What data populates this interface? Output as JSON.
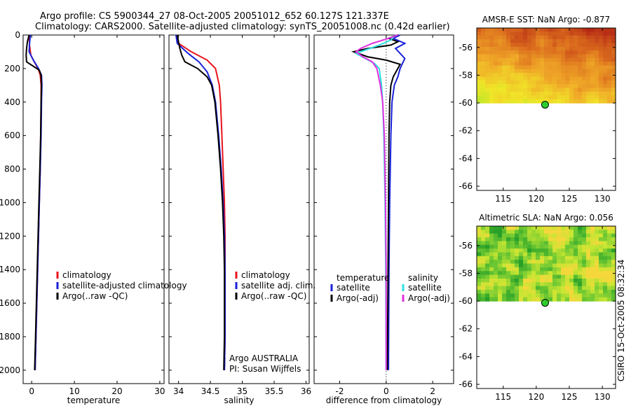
{
  "title": {
    "line1": "Argo profile: CS 5900344_27 08-Oct-2005 20051012_652 60.127S 121.337E",
    "line2": "Climatology: CARS2000. Satellite-adjusted climatology: synTS_20051008.nc (0.42d earlier)"
  },
  "footer": {
    "credit": "CSIRO 15-Oct-2005 08:32:34"
  },
  "colors": {
    "climatology": "#e8141c",
    "satellite": "#1820d8",
    "argo": "#000000",
    "salinity_satellite": "#2ce0e0",
    "salinity_argo": "#e030e0"
  },
  "chart_data": [
    {
      "type": "line",
      "name": "temperature-profile",
      "xlabel": "temperature",
      "xlim": [
        -2,
        31
      ],
      "xticks": [
        0,
        10,
        20,
        30
      ],
      "ylim": [
        2080,
        0
      ],
      "yticks": [
        0,
        200,
        400,
        600,
        800,
        1000,
        1200,
        1400,
        1600,
        1800,
        2000
      ],
      "legend": [
        "climatology",
        "satellite-adjusted climatology",
        "Argo(..raw -QC)"
      ],
      "series": [
        {
          "name": "climatology",
          "color": "#e8141c",
          "points": [
            [
              -0.6,
              0
            ],
            [
              -0.5,
              60
            ],
            [
              -0.2,
              120
            ],
            [
              0.6,
              160
            ],
            [
              1.5,
              200
            ],
            [
              2.0,
              240
            ],
            [
              2.2,
              300
            ],
            [
              2.2,
              400
            ],
            [
              2.1,
              600
            ],
            [
              2.0,
              800
            ],
            [
              1.8,
              1000
            ],
            [
              1.6,
              1200
            ],
            [
              1.4,
              1400
            ],
            [
              1.2,
              1600
            ],
            [
              1.0,
              1800
            ],
            [
              0.8,
              2000
            ]
          ]
        },
        {
          "name": "satellite-adjusted climatology",
          "color": "#1820d8",
          "points": [
            [
              -0.3,
              0
            ],
            [
              -0.5,
              50
            ],
            [
              -0.6,
              100
            ],
            [
              0.4,
              150
            ],
            [
              1.6,
              200
            ],
            [
              2.3,
              240
            ],
            [
              2.4,
              300
            ],
            [
              2.3,
              400
            ],
            [
              2.2,
              600
            ],
            [
              2.0,
              800
            ],
            [
              1.8,
              1000
            ],
            [
              1.6,
              1200
            ],
            [
              1.4,
              1400
            ],
            [
              1.2,
              1600
            ],
            [
              1.0,
              1800
            ],
            [
              0.8,
              2000
            ]
          ]
        },
        {
          "name": "Argo(..raw -QC)",
          "color": "#000000",
          "points": [
            [
              -0.6,
              0
            ],
            [
              -1.0,
              40
            ],
            [
              -1.2,
              80
            ],
            [
              -1.3,
              120
            ],
            [
              -1.2,
              160
            ],
            [
              0.6,
              190
            ],
            [
              1.8,
              210
            ],
            [
              2.2,
              240
            ],
            [
              2.3,
              300
            ],
            [
              2.2,
              400
            ],
            [
              2.1,
              600
            ],
            [
              1.9,
              800
            ],
            [
              1.7,
              1000
            ],
            [
              1.5,
              1200
            ],
            [
              1.3,
              1400
            ],
            [
              1.1,
              1600
            ],
            [
              0.9,
              1800
            ],
            [
              0.7,
              2000
            ]
          ]
        }
      ]
    },
    {
      "type": "line",
      "name": "salinity-profile",
      "xlabel": "salinity",
      "xlim": [
        33.85,
        36.05
      ],
      "xticks": [
        34,
        34.5,
        35,
        35.5,
        36
      ],
      "ylim": [
        2080,
        0
      ],
      "legend": [
        "climatology",
        "satellite adj. clim.",
        "Argo(..raw -QC)"
      ],
      "annotation": [
        "Argo AUSTRALIA",
        "PI: Susan Wijffels"
      ],
      "series": [
        {
          "name": "climatology",
          "color": "#e8141c",
          "points": [
            [
              33.97,
              0
            ],
            [
              34.0,
              50
            ],
            [
              34.2,
              100
            ],
            [
              34.45,
              150
            ],
            [
              34.58,
              200
            ],
            [
              34.64,
              300
            ],
            [
              34.66,
              400
            ],
            [
              34.68,
              600
            ],
            [
              34.7,
              800
            ],
            [
              34.72,
              1000
            ],
            [
              34.73,
              1200
            ],
            [
              34.73,
              1400
            ],
            [
              34.73,
              1600
            ],
            [
              34.73,
              1800
            ],
            [
              34.72,
              2000
            ]
          ]
        },
        {
          "name": "satellite adj. clim.",
          "color": "#1820d8",
          "points": [
            [
              33.96,
              0
            ],
            [
              33.98,
              50
            ],
            [
              34.15,
              110
            ],
            [
              34.32,
              160
            ],
            [
              34.45,
              220
            ],
            [
              34.53,
              300
            ],
            [
              34.58,
              400
            ],
            [
              34.63,
              600
            ],
            [
              34.67,
              800
            ],
            [
              34.7,
              1000
            ],
            [
              34.72,
              1200
            ],
            [
              34.73,
              1400
            ],
            [
              34.73,
              1600
            ],
            [
              34.73,
              1800
            ],
            [
              34.72,
              2000
            ]
          ]
        },
        {
          "name": "Argo(..raw -QC)",
          "color": "#000000",
          "points": [
            [
              33.98,
              0
            ],
            [
              34.0,
              40
            ],
            [
              34.02,
              80
            ],
            [
              34.05,
              120
            ],
            [
              34.1,
              160
            ],
            [
              34.3,
              200
            ],
            [
              34.45,
              250
            ],
            [
              34.52,
              300
            ],
            [
              34.57,
              400
            ],
            [
              34.62,
              600
            ],
            [
              34.66,
              800
            ],
            [
              34.69,
              1000
            ],
            [
              34.71,
              1200
            ],
            [
              34.72,
              1400
            ],
            [
              34.72,
              1600
            ],
            [
              34.72,
              1800
            ],
            [
              34.71,
              2000
            ]
          ]
        }
      ]
    },
    {
      "type": "line",
      "name": "difference-profile",
      "xlabel": "difference from climatology",
      "xlim": [
        -3.1,
        2.9
      ],
      "xticks": [
        -2,
        0,
        2
      ],
      "xtick_labels": [
        "-2",
        "0",
        "2"
      ],
      "ylim": [
        2080,
        0
      ],
      "legend_temperature": {
        "heading": "temperature",
        "items": [
          "satellite",
          "Argo(-adj)"
        ]
      },
      "legend_salinity": {
        "heading": "salinity",
        "items": [
          "satellite",
          "Argo(-adj)"
        ]
      },
      "series": [
        {
          "name": "temperature satellite",
          "color": "#1820d8",
          "points": [
            [
              0.6,
              0
            ],
            [
              0.3,
              20
            ],
            [
              0.8,
              50
            ],
            [
              0.4,
              80
            ],
            [
              0.6,
              110
            ],
            [
              0.8,
              140
            ],
            [
              0.7,
              170
            ],
            [
              0.6,
              200
            ],
            [
              0.5,
              250
            ],
            [
              0.35,
              300
            ],
            [
              0.25,
              400
            ],
            [
              0.2,
              600
            ],
            [
              0.15,
              1000
            ],
            [
              0.12,
              1400
            ],
            [
              0.1,
              2000
            ]
          ]
        },
        {
          "name": "temperature Argo(-adj)",
          "color": "#000000",
          "points": [
            [
              0.5,
              0
            ],
            [
              0.1,
              20
            ],
            [
              0.5,
              40
            ],
            [
              0.2,
              60
            ],
            [
              -0.8,
              80
            ],
            [
              -1.4,
              100
            ],
            [
              -0.8,
              130
            ],
            [
              0.0,
              150
            ],
            [
              0.6,
              175
            ],
            [
              0.5,
              200
            ],
            [
              0.3,
              250
            ],
            [
              0.2,
              300
            ],
            [
              0.15,
              400
            ],
            [
              0.12,
              600
            ],
            [
              0.1,
              1000
            ],
            [
              0.08,
              1400
            ],
            [
              0.05,
              2000
            ]
          ]
        },
        {
          "name": "salinity satellite",
          "color": "#2ce0e0",
          "points": [
            [
              0.4,
              0
            ],
            [
              0.2,
              30
            ],
            [
              -0.3,
              60
            ],
            [
              -0.9,
              90
            ],
            [
              -1.3,
              110
            ],
            [
              -0.9,
              140
            ],
            [
              -0.5,
              170
            ],
            [
              -0.3,
              200
            ],
            [
              -0.2,
              300
            ],
            [
              -0.15,
              400
            ],
            [
              -0.1,
              600
            ],
            [
              -0.05,
              1000
            ],
            [
              -0.02,
              1400
            ],
            [
              0.0,
              2000
            ]
          ]
        },
        {
          "name": "salinity Argo(-adj)",
          "color": "#e030e0",
          "points": [
            [
              0.5,
              0
            ],
            [
              0.1,
              20
            ],
            [
              -0.6,
              50
            ],
            [
              -1.1,
              80
            ],
            [
              -1.3,
              100
            ],
            [
              -1.0,
              130
            ],
            [
              -0.6,
              160
            ],
            [
              -0.4,
              200
            ],
            [
              -0.25,
              300
            ],
            [
              -0.15,
              400
            ],
            [
              -0.08,
              600
            ],
            [
              -0.03,
              1000
            ],
            [
              0.0,
              1400
            ],
            [
              0.0,
              2000
            ]
          ]
        }
      ]
    },
    {
      "type": "heatmap",
      "name": "amsr-e-sst-map",
      "title": "AMSR-E SST: NaN Argo: -0.877",
      "xlim": [
        111,
        132
      ],
      "ylim": [
        -66.3,
        -54.6
      ],
      "xticks": [
        115,
        120,
        125,
        130
      ],
      "yticks": [
        -56,
        -58,
        -60,
        -62,
        -64,
        -66
      ],
      "data_lat_min": -60,
      "argo_position": {
        "lon": 121.337,
        "lat": -60.127
      }
    },
    {
      "type": "heatmap",
      "name": "altimetric-sla-map",
      "title": "Altimetric SLA: NaN Argo: 0.056",
      "xlim": [
        111,
        132
      ],
      "ylim": [
        -66.3,
        -54.6
      ],
      "xticks": [
        115,
        120,
        125,
        130
      ],
      "yticks": [
        -56,
        -58,
        -60,
        -62,
        -64,
        -66
      ],
      "data_lat_min": -60,
      "argo_position": {
        "lon": 121.337,
        "lat": -60.127
      }
    }
  ]
}
